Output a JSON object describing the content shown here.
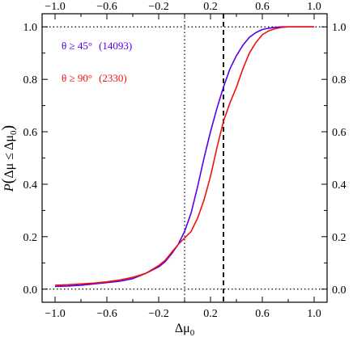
{
  "chart_data": {
    "type": "line",
    "xlabel": "Δμ",
    "xlabel_sub": "0",
    "ylabel_parts": {
      "p": "P",
      "open": "(",
      "main": "Δμ ≤ Δμ",
      "sub": "0",
      "close": ")"
    },
    "xlim": [
      -1.1,
      1.1
    ],
    "ylim": [
      -0.05,
      1.05
    ],
    "x_ticks": [
      -1.0,
      -0.6,
      -0.2,
      0.2,
      0.6,
      1.0
    ],
    "x_tick_labels": [
      "−1.0",
      "−0.6",
      "−0.2",
      "0.2",
      "0.6",
      "1.0"
    ],
    "y_ticks": [
      0.0,
      0.2,
      0.4,
      0.6,
      0.8,
      1.0
    ],
    "y_tick_labels": [
      "0.0",
      "0.2",
      "0.4",
      "0.6",
      "0.8",
      "1.0"
    ],
    "top_axis_mirrors_bottom": true,
    "right_axis_mirrors_left": true,
    "legend_placement": "top-left",
    "reference_lines": [
      {
        "orientation": "vertical",
        "x": 0.0,
        "style": "dotted"
      },
      {
        "orientation": "vertical",
        "x": 0.3,
        "style": "dashed"
      },
      {
        "orientation": "horizontal",
        "y": 0.0,
        "style": "dotted"
      },
      {
        "orientation": "horizontal",
        "y": 1.0,
        "style": "dotted"
      }
    ],
    "series": [
      {
        "name": "θ ≥ 45°",
        "count": "(14093)",
        "color": "#5500ee",
        "x": [
          -1.0,
          -0.9,
          -0.8,
          -0.7,
          -0.6,
          -0.5,
          -0.4,
          -0.3,
          -0.2,
          -0.15,
          -0.1,
          -0.05,
          0.0,
          0.05,
          0.1,
          0.15,
          0.2,
          0.25,
          0.3,
          0.35,
          0.4,
          0.45,
          0.5,
          0.55,
          0.6,
          0.65,
          0.7,
          0.75,
          0.8,
          0.9,
          1.0
        ],
        "y": [
          0.01,
          0.012,
          0.015,
          0.02,
          0.025,
          0.03,
          0.04,
          0.06,
          0.085,
          0.105,
          0.135,
          0.17,
          0.22,
          0.29,
          0.39,
          0.5,
          0.6,
          0.69,
          0.77,
          0.84,
          0.89,
          0.93,
          0.96,
          0.978,
          0.99,
          0.995,
          0.998,
          1.0,
          1.0,
          1.0,
          1.0
        ]
      },
      {
        "name": "θ ≥ 90°",
        "count": "(2330)",
        "color": "#ee1111",
        "x": [
          -1.0,
          -0.9,
          -0.8,
          -0.7,
          -0.6,
          -0.5,
          -0.4,
          -0.3,
          -0.2,
          -0.15,
          -0.1,
          -0.05,
          0.0,
          0.05,
          0.1,
          0.15,
          0.2,
          0.25,
          0.3,
          0.35,
          0.4,
          0.45,
          0.5,
          0.55,
          0.6,
          0.65,
          0.7,
          0.75,
          0.8,
          0.9,
          1.0
        ],
        "y": [
          0.015,
          0.017,
          0.02,
          0.023,
          0.028,
          0.035,
          0.045,
          0.06,
          0.09,
          0.11,
          0.14,
          0.17,
          0.195,
          0.22,
          0.27,
          0.34,
          0.43,
          0.54,
          0.64,
          0.71,
          0.77,
          0.84,
          0.9,
          0.94,
          0.97,
          0.985,
          0.993,
          0.998,
          1.0,
          1.0,
          1.0
        ]
      }
    ]
  }
}
